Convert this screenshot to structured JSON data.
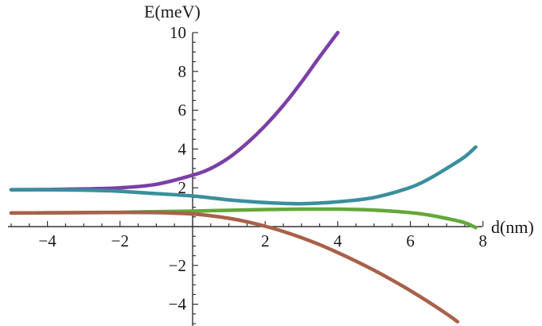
{
  "chart_data": {
    "type": "line",
    "title": "",
    "xlabel": "d(nm)",
    "ylabel": "E(meV)",
    "xlim": [
      -5,
      7.8
    ],
    "ylim": [
      -5,
      10
    ],
    "x_ticks": [
      -4,
      -2,
      2,
      4,
      6,
      8
    ],
    "y_ticks": [
      -4,
      -2,
      2,
      4,
      6,
      8,
      10
    ],
    "grid": false,
    "series": [
      {
        "color": "#7b3fa6",
        "x": [
          -5,
          -4,
          -3,
          -2,
          -1,
          0,
          0.5,
          1,
          1.5,
          2,
          2.5,
          3,
          3.5,
          4
        ],
        "y": [
          1.9,
          1.91,
          1.94,
          2.0,
          2.18,
          2.65,
          3.0,
          3.55,
          4.3,
          5.2,
          6.25,
          7.45,
          8.75,
          10.0
        ]
      },
      {
        "color": "#3a8f9e",
        "x": [
          -5,
          -4,
          -3,
          -2,
          -1,
          0,
          1,
          2,
          3,
          4,
          5,
          6,
          6.5,
          7,
          7.5,
          7.8
        ],
        "y": [
          1.9,
          1.9,
          1.88,
          1.82,
          1.7,
          1.58,
          1.38,
          1.24,
          1.18,
          1.28,
          1.5,
          2.02,
          2.45,
          3.0,
          3.6,
          4.1
        ]
      },
      {
        "color": "#63a83a",
        "x": [
          -5,
          -4,
          -3,
          -2,
          -1,
          0,
          1,
          2,
          3,
          4,
          5,
          6,
          6.5,
          7,
          7.5,
          7.8
        ],
        "y": [
          0.7,
          0.71,
          0.72,
          0.74,
          0.77,
          0.8,
          0.84,
          0.88,
          0.9,
          0.9,
          0.85,
          0.72,
          0.6,
          0.42,
          0.2,
          -0.05
        ]
      },
      {
        "color": "#a8614a",
        "x": [
          -5,
          -4,
          -3,
          -2,
          -1,
          0,
          0.5,
          1,
          1.5,
          2,
          2.5,
          3,
          3.5,
          4,
          4.5,
          5,
          5.5,
          6,
          6.5,
          7,
          7.3
        ],
        "y": [
          0.7,
          0.71,
          0.72,
          0.73,
          0.72,
          0.65,
          0.56,
          0.43,
          0.25,
          0.02,
          -0.25,
          -0.57,
          -0.93,
          -1.34,
          -1.78,
          -2.25,
          -2.76,
          -3.3,
          -3.88,
          -4.5,
          -4.9
        ]
      }
    ]
  }
}
